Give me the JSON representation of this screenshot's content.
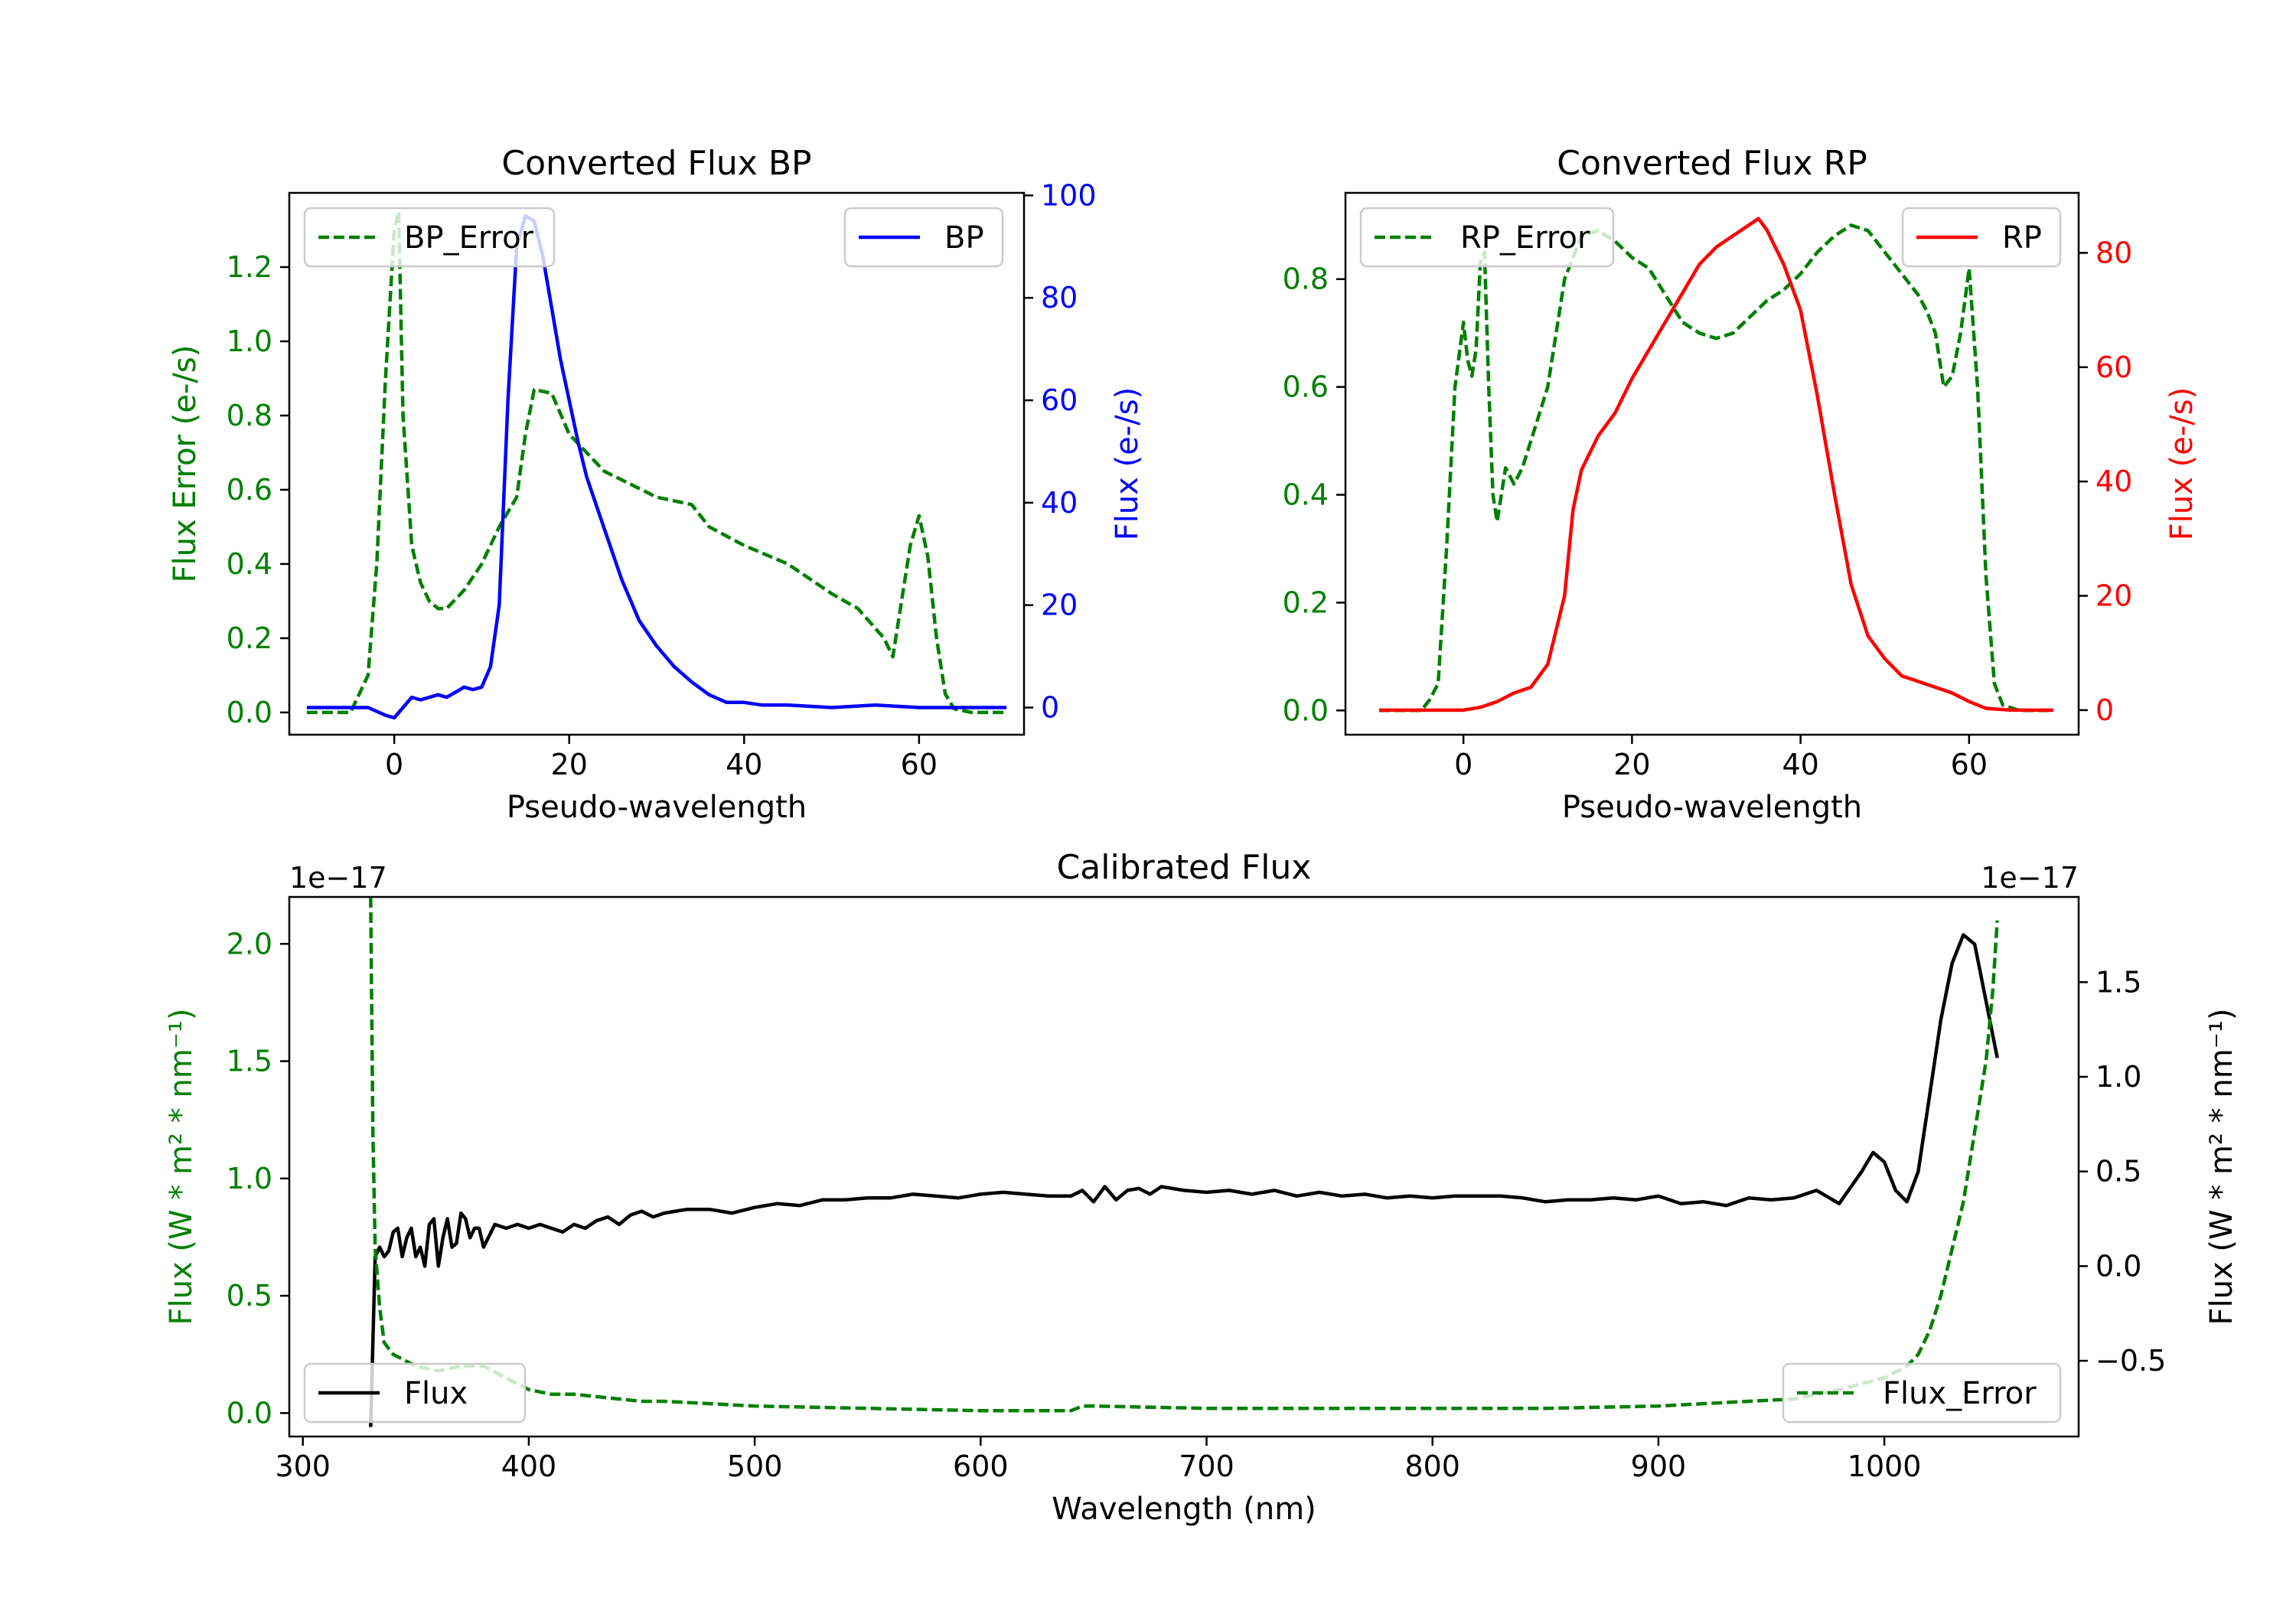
{
  "chart_data": [
    {
      "type": "line",
      "title": "Converted Flux BP",
      "xlabel": "Pseudo-wavelength",
      "ylabel_left": "Flux Error (e-/s)",
      "ylabel_right": "Flux (e-/s)",
      "xlim": [
        -12,
        72
      ],
      "ylim_left": [
        -0.06,
        1.4
      ],
      "ylim_right": [
        -5.3,
        100.5
      ],
      "xticks": [
        0,
        20,
        40,
        60
      ],
      "xtick_labels": [
        "0",
        "20",
        "40",
        "60"
      ],
      "yticks_left": [
        0.0,
        0.2,
        0.4,
        0.6,
        0.8,
        1.0,
        1.2
      ],
      "ytick_labels_left": [
        "0.0",
        "0.2",
        "0.4",
        "0.6",
        "0.8",
        "1.0",
        "1.2"
      ],
      "yticks_right": [
        0,
        20,
        40,
        60,
        80,
        100
      ],
      "ytick_labels_right": [
        "0",
        "20",
        "40",
        "60",
        "80",
        "100"
      ],
      "colors": {
        "left": "#008000",
        "right": "#0000ff"
      },
      "legend_left": {
        "label": "BP_Error",
        "loc": "upper left"
      },
      "legend_right": {
        "label": "BP",
        "loc": "upper right"
      },
      "series": [
        {
          "name": "BP_Error",
          "axis": "left",
          "style": "dashed",
          "color": "#008000",
          "x": [
            -10,
            -5,
            -3,
            -2,
            -1,
            0,
            0.5,
            1,
            2,
            3,
            4,
            5,
            6,
            8,
            10,
            12,
            14,
            15,
            16,
            18,
            20,
            24,
            30,
            34,
            36,
            40,
            45,
            50,
            53,
            56,
            57,
            58,
            59,
            60,
            61,
            62,
            63,
            64,
            66,
            70
          ],
          "y": [
            0,
            0,
            0.1,
            0.4,
            0.9,
            1.3,
            1.35,
            0.8,
            0.45,
            0.35,
            0.3,
            0.28,
            0.28,
            0.33,
            0.4,
            0.5,
            0.58,
            0.75,
            0.87,
            0.86,
            0.75,
            0.65,
            0.58,
            0.56,
            0.5,
            0.45,
            0.4,
            0.32,
            0.28,
            0.2,
            0.15,
            0.3,
            0.45,
            0.53,
            0.42,
            0.2,
            0.05,
            0.01,
            0,
            0
          ]
        },
        {
          "name": "BP",
          "axis": "right",
          "style": "solid",
          "color": "#0000ff",
          "x": [
            -10,
            -5,
            -3,
            -1,
            0,
            1,
            2,
            3,
            4,
            5,
            6,
            7,
            8,
            9,
            10,
            11,
            12,
            13,
            14,
            15,
            16,
            17,
            18,
            19,
            20,
            21,
            22,
            24,
            26,
            28,
            30,
            32,
            34,
            36,
            38,
            40,
            42,
            45,
            50,
            55,
            60,
            65,
            70
          ],
          "y": [
            0,
            0,
            0,
            -1.5,
            -2,
            0,
            2,
            1.5,
            2,
            2.5,
            2,
            3,
            4,
            3.5,
            4,
            8,
            20,
            60,
            90,
            96,
            95,
            88,
            78,
            68,
            60,
            52,
            45,
            35,
            25,
            17,
            12,
            8,
            5,
            2.5,
            1,
            1,
            0.5,
            0.5,
            0,
            0.5,
            0,
            0,
            0
          ]
        }
      ]
    },
    {
      "type": "line",
      "title": "Converted Flux RP",
      "xlabel": "Pseudo-wavelength",
      "ylabel_left": "Flux Error (e-/s)",
      "ylabel_right": "Flux (e-/s)",
      "xlim": [
        -14,
        73
      ],
      "ylim_left": [
        -0.045,
        0.96
      ],
      "ylim_right": [
        -4.3,
        90.5
      ],
      "xticks": [
        0,
        20,
        40,
        60
      ],
      "xtick_labels": [
        "0",
        "20",
        "40",
        "60"
      ],
      "yticks_left": [
        0.0,
        0.2,
        0.4,
        0.6,
        0.8
      ],
      "ytick_labels_left": [
        "0.0",
        "0.2",
        "0.4",
        "0.6",
        "0.8"
      ],
      "yticks_right": [
        0,
        20,
        40,
        60,
        80
      ],
      "ytick_labels_right": [
        "0",
        "20",
        "40",
        "60",
        "80"
      ],
      "colors": {
        "left": "#008000",
        "right": "#ff0000"
      },
      "legend_left": {
        "label": "RP_Error",
        "loc": "upper left"
      },
      "legend_right": {
        "label": "RP",
        "loc": "upper right"
      },
      "series": [
        {
          "name": "RP_Error",
          "axis": "right_unused",
          "style": "dashed",
          "color": "#008000",
          "axis_used": "left",
          "x": [
            -10,
            -5,
            -4,
            -3,
            -2,
            -1,
            0,
            0.5,
            1,
            1.5,
            2,
            2.5,
            3,
            3.5,
            4,
            5,
            6,
            7,
            8,
            10,
            12,
            14,
            16,
            18,
            20,
            22,
            24,
            26,
            28,
            30,
            32,
            34,
            36,
            38,
            40,
            42,
            44,
            46,
            48,
            50,
            52,
            54,
            55,
            56,
            57,
            58,
            59,
            60,
            61,
            62,
            63,
            64,
            66,
            70
          ],
          "y": [
            0,
            0,
            0.02,
            0.05,
            0.3,
            0.6,
            0.72,
            0.65,
            0.62,
            0.67,
            0.83,
            0.85,
            0.6,
            0.4,
            0.35,
            0.45,
            0.42,
            0.45,
            0.5,
            0.6,
            0.8,
            0.88,
            0.89,
            0.87,
            0.84,
            0.82,
            0.77,
            0.72,
            0.7,
            0.69,
            0.7,
            0.73,
            0.76,
            0.78,
            0.81,
            0.85,
            0.88,
            0.9,
            0.89,
            0.85,
            0.81,
            0.77,
            0.74,
            0.7,
            0.6,
            0.62,
            0.7,
            0.82,
            0.6,
            0.25,
            0.05,
            0.01,
            0,
            0
          ]
        },
        {
          "name": "RP",
          "axis": "right",
          "style": "solid",
          "color": "#ff0000",
          "x": [
            -10,
            -5,
            0,
            2,
            4,
            6,
            8,
            10,
            12,
            13,
            14,
            15,
            16,
            18,
            20,
            22,
            24,
            26,
            28,
            30,
            32,
            34,
            35,
            36,
            38,
            40,
            42,
            44,
            46,
            48,
            50,
            52,
            54,
            56,
            58,
            60,
            62,
            65,
            70
          ],
          "y": [
            0,
            0,
            0,
            0.5,
            1.5,
            3,
            4,
            8,
            20,
            35,
            42,
            45,
            48,
            52,
            58,
            63,
            68,
            73,
            78,
            81,
            83,
            85,
            86,
            84,
            78,
            70,
            55,
            38,
            22,
            13,
            9,
            6,
            5,
            4,
            3,
            1.5,
            0.3,
            0,
            0
          ]
        }
      ]
    },
    {
      "type": "line",
      "title": "Calibrated Flux",
      "xlabel": "Wavelength (nm)",
      "ylabel_left": "Flux (W * m² * nm⁻¹)",
      "ylabel_right": "Flux (W * m² * nm⁻¹)",
      "offset_left": "1e−17",
      "offset_right": "1e−17",
      "xlim": [
        294,
        1086
      ],
      "ylim_left": [
        -0.1,
        2.2
      ],
      "ylim_right": [
        -0.9,
        1.95
      ],
      "xticks": [
        300,
        400,
        500,
        600,
        700,
        800,
        900,
        1000
      ],
      "xtick_labels": [
        "300",
        "400",
        "500",
        "600",
        "700",
        "800",
        "900",
        "1000"
      ],
      "yticks_left": [
        0.0,
        0.5,
        1.0,
        1.5,
        2.0
      ],
      "ytick_labels_left": [
        "0.0",
        "0.5",
        "1.0",
        "1.5",
        "2.0"
      ],
      "yticks_right": [
        -0.5,
        0.0,
        0.5,
        1.0,
        1.5
      ],
      "ytick_labels_right": [
        "−0.5",
        "0.0",
        "0.5",
        "1.0",
        "1.5"
      ],
      "colors": {
        "left": "#008000",
        "right": "#000000"
      },
      "legend_left": {
        "label": "Flux",
        "loc": "lower left"
      },
      "legend_right": {
        "label": "Flux_Error",
        "loc": "lower right"
      },
      "series": [
        {
          "name": "Flux",
          "axis": "right",
          "style": "solid",
          "color": "#000000",
          "x": [
            330,
            332,
            334,
            336,
            338,
            340,
            342,
            344,
            346,
            348,
            350,
            352,
            354,
            356,
            358,
            360,
            362,
            364,
            366,
            368,
            370,
            372,
            374,
            376,
            378,
            380,
            385,
            390,
            395,
            400,
            405,
            410,
            415,
            420,
            425,
            430,
            435,
            440,
            445,
            450,
            455,
            460,
            470,
            480,
            490,
            500,
            510,
            520,
            530,
            540,
            550,
            560,
            570,
            580,
            590,
            600,
            610,
            620,
            630,
            640,
            645,
            650,
            655,
            660,
            665,
            670,
            675,
            680,
            690,
            700,
            710,
            720,
            730,
            740,
            750,
            760,
            770,
            780,
            790,
            800,
            810,
            820,
            830,
            840,
            850,
            860,
            870,
            880,
            890,
            900,
            910,
            920,
            930,
            940,
            950,
            960,
            970,
            980,
            990,
            995,
            1000,
            1005,
            1010,
            1015,
            1020,
            1025,
            1030,
            1035,
            1040,
            1045,
            1050
          ],
          "y": [
            -0.85,
            0.05,
            0.1,
            0.05,
            0.08,
            0.18,
            0.2,
            0.05,
            0.15,
            0.2,
            0.05,
            0.1,
            0.0,
            0.22,
            0.25,
            0.0,
            0.15,
            0.25,
            0.1,
            0.12,
            0.28,
            0.25,
            0.15,
            0.2,
            0.2,
            0.1,
            0.22,
            0.2,
            0.22,
            0.2,
            0.22,
            0.2,
            0.18,
            0.22,
            0.2,
            0.24,
            0.26,
            0.22,
            0.27,
            0.29,
            0.26,
            0.28,
            0.3,
            0.3,
            0.28,
            0.31,
            0.33,
            0.32,
            0.35,
            0.35,
            0.36,
            0.36,
            0.38,
            0.37,
            0.36,
            0.38,
            0.39,
            0.38,
            0.37,
            0.37,
            0.4,
            0.34,
            0.42,
            0.35,
            0.4,
            0.41,
            0.38,
            0.42,
            0.4,
            0.39,
            0.4,
            0.38,
            0.4,
            0.37,
            0.39,
            0.37,
            0.38,
            0.36,
            0.37,
            0.36,
            0.37,
            0.37,
            0.37,
            0.36,
            0.34,
            0.35,
            0.35,
            0.36,
            0.35,
            0.37,
            0.33,
            0.34,
            0.32,
            0.36,
            0.35,
            0.36,
            0.4,
            0.33,
            0.5,
            0.6,
            0.55,
            0.4,
            0.34,
            0.5,
            0.9,
            1.3,
            1.6,
            1.75,
            1.7,
            1.4,
            1.1
          ]
        },
        {
          "name": "Flux_Error",
          "axis": "left",
          "style": "dashed",
          "color": "#008000",
          "x": [
            330,
            331,
            332,
            334,
            336,
            340,
            350,
            360,
            370,
            380,
            390,
            400,
            410,
            420,
            430,
            440,
            450,
            460,
            480,
            500,
            550,
            600,
            640,
            645,
            650,
            700,
            750,
            800,
            850,
            900,
            940,
            960,
            980,
            1000,
            1010,
            1015,
            1020,
            1025,
            1030,
            1035,
            1040,
            1045,
            1048,
            1050
          ],
          "y": [
            2.2,
            1.2,
            0.7,
            0.45,
            0.3,
            0.25,
            0.2,
            0.18,
            0.2,
            0.2,
            0.15,
            0.1,
            0.08,
            0.08,
            0.07,
            0.06,
            0.05,
            0.05,
            0.04,
            0.03,
            0.02,
            0.01,
            0.01,
            0.03,
            0.03,
            0.02,
            0.02,
            0.02,
            0.02,
            0.03,
            0.05,
            0.06,
            0.1,
            0.15,
            0.2,
            0.25,
            0.35,
            0.5,
            0.7,
            0.9,
            1.2,
            1.5,
            1.8,
            2.1
          ]
        }
      ]
    }
  ]
}
